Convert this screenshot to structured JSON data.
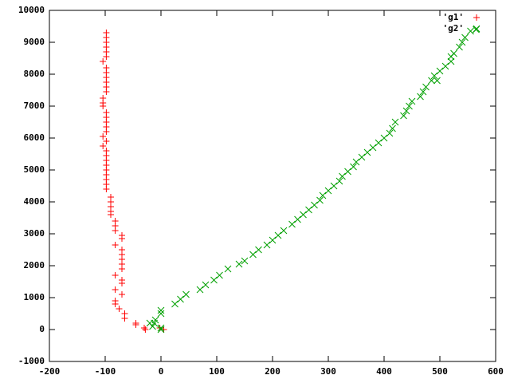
{
  "chart_data": {
    "type": "scatter",
    "xlim": [
      -200,
      600
    ],
    "ylim": [
      -1000,
      10000
    ],
    "xticks": [
      -200,
      -100,
      0,
      100,
      200,
      300,
      400,
      500,
      600
    ],
    "yticks": [
      -1000,
      0,
      1000,
      2000,
      3000,
      4000,
      5000,
      6000,
      7000,
      8000,
      9000,
      10000
    ],
    "legend": "top-right",
    "series": [
      {
        "name": "'g1'",
        "color": "#ff0000",
        "marker": "plus",
        "x": [
          -98,
          -98,
          -98,
          -98,
          -98,
          -98,
          -104,
          -98,
          -98,
          -98,
          -98,
          -98,
          -98,
          -104,
          -104,
          -104,
          -98,
          -98,
          -98,
          -98,
          -98,
          -104,
          -98,
          -104,
          -98,
          -98,
          -98,
          -98,
          -98,
          -98,
          -98,
          -98,
          -98,
          -90,
          -90,
          -90,
          -90,
          -90,
          -82,
          -82,
          -82,
          -70,
          -70,
          -82,
          -70,
          -70,
          -70,
          -70,
          -70,
          -82,
          -70,
          -70,
          -82,
          -70,
          -82,
          -82,
          -75,
          -65,
          -65,
          -45,
          -45,
          -30,
          -2,
          5,
          -28
        ],
        "values": [
          9300,
          9150,
          9000,
          8850,
          8700,
          8550,
          8400,
          8200,
          8050,
          7900,
          7750,
          7600,
          7450,
          7250,
          7100,
          7000,
          6800,
          6650,
          6500,
          6350,
          6200,
          6050,
          5900,
          5750,
          5600,
          5450,
          5300,
          5150,
          5000,
          4850,
          4700,
          4550,
          4400,
          4150,
          4000,
          3850,
          3700,
          3600,
          3400,
          3250,
          3100,
          2950,
          2850,
          2650,
          2500,
          2350,
          2200,
          2050,
          1900,
          1700,
          1550,
          1450,
          1250,
          1100,
          900,
          800,
          650,
          500,
          350,
          200,
          150,
          50,
          50,
          0,
          0
        ]
      },
      {
        "name": "'g2'",
        "color": "#00a000",
        "marker": "cross",
        "x": [
          -15,
          -12,
          -10,
          -20,
          0,
          0,
          0,
          0,
          25,
          35,
          45,
          70,
          80,
          95,
          105,
          120,
          140,
          150,
          165,
          175,
          190,
          200,
          210,
          220,
          235,
          245,
          255,
          265,
          275,
          285,
          290,
          300,
          310,
          320,
          325,
          335,
          345,
          350,
          360,
          370,
          380,
          390,
          400,
          410,
          415,
          420,
          435,
          440,
          445,
          450,
          465,
          470,
          475,
          485,
          490,
          495,
          500,
          510,
          520,
          520,
          525,
          535,
          540,
          545,
          555,
          565
        ],
        "values": [
          100,
          200,
          300,
          200,
          500,
          600,
          50,
          0,
          800,
          950,
          1100,
          1250,
          1400,
          1550,
          1700,
          1900,
          2050,
          2150,
          2350,
          2500,
          2650,
          2800,
          2950,
          3100,
          3300,
          3450,
          3600,
          3750,
          3900,
          4050,
          4200,
          4350,
          4500,
          4650,
          4800,
          4950,
          5100,
          5250,
          5400,
          5550,
          5700,
          5850,
          6000,
          6150,
          6300,
          6500,
          6700,
          6850,
          7000,
          7150,
          7300,
          7450,
          7600,
          7800,
          7950,
          7800,
          8100,
          8250,
          8400,
          8550,
          8650,
          8850,
          9000,
          9150,
          9350,
          9400
        ]
      }
    ]
  }
}
